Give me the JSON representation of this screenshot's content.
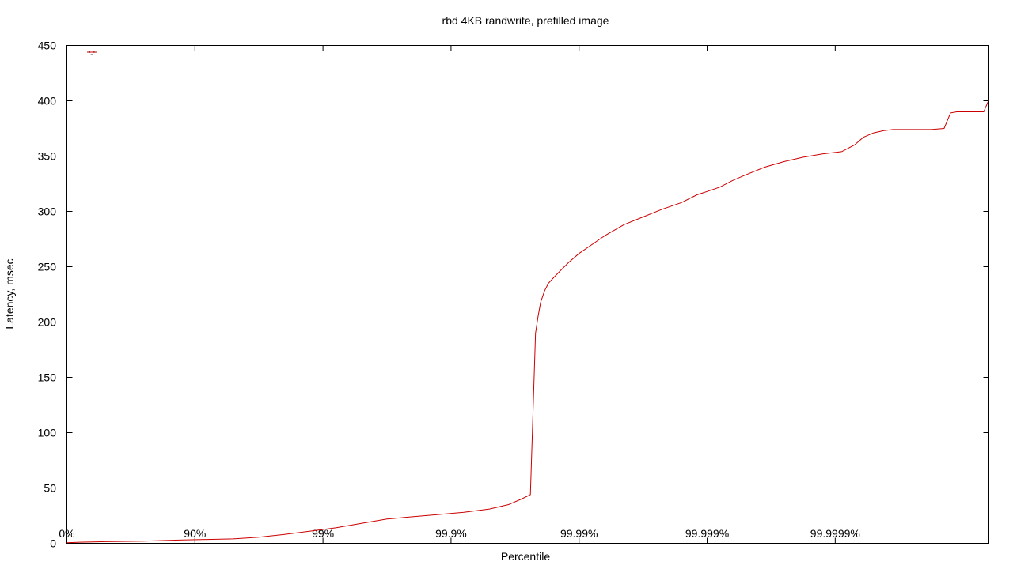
{
  "chart_data": {
    "type": "line",
    "title": "rbd 4KB randwrite, prefilled image",
    "xlabel": "Percentile",
    "ylabel": "Latency, msec",
    "ylim": [
      0,
      450
    ],
    "yticks": [
      0,
      50,
      100,
      150,
      200,
      250,
      300,
      350,
      400,
      450
    ],
    "x_scale": "log-nines",
    "xlim": [
      0,
      7.2
    ],
    "xticks": [
      {
        "nines": 0,
        "label": "0%"
      },
      {
        "nines": 1,
        "label": "90%"
      },
      {
        "nines": 2,
        "label": "99%"
      },
      {
        "nines": 3,
        "label": "99.9%"
      },
      {
        "nines": 4,
        "label": "99.99%"
      },
      {
        "nines": 5,
        "label": "99.999%"
      },
      {
        "nines": 6,
        "label": "99.9999%"
      }
    ],
    "grid": false,
    "legend": {
      "position": "top-left",
      "entries": [
        "'-'"
      ]
    },
    "series": [
      {
        "color": "#cc0000",
        "x": [
          0,
          0.1,
          0.3,
          0.6,
          0.9,
          1.1,
          1.3,
          1.5,
          1.7,
          1.9,
          2.1,
          2.3,
          2.5,
          2.7,
          2.9,
          3.1,
          3.3,
          3.45,
          3.55,
          3.62,
          3.66,
          3.68,
          3.7,
          3.73,
          3.76,
          3.8,
          3.85,
          3.92,
          4.0,
          4.1,
          4.2,
          4.35,
          4.5,
          4.65,
          4.8,
          4.92,
          5.0,
          5.1,
          5.2,
          5.3,
          5.45,
          5.6,
          5.75,
          5.9,
          6.05,
          6.15,
          6.22,
          6.3,
          6.38,
          6.45,
          6.6,
          6.75,
          6.85,
          6.9,
          6.95,
          7.0,
          7.1,
          7.16,
          7.2
        ],
        "y": [
          0.5,
          1,
          1.5,
          2,
          3,
          3.5,
          4,
          5.5,
          8,
          11,
          14,
          18,
          22,
          24,
          26,
          28,
          31,
          35,
          40,
          44,
          190,
          205,
          218,
          228,
          235,
          240,
          246,
          254,
          262,
          270,
          278,
          288,
          295,
          302,
          308,
          315,
          318,
          322,
          328,
          333,
          340,
          345,
          349,
          352,
          354,
          360,
          367,
          371,
          373,
          374,
          374,
          374,
          375,
          389,
          390,
          390,
          390,
          390,
          401
        ]
      }
    ]
  }
}
